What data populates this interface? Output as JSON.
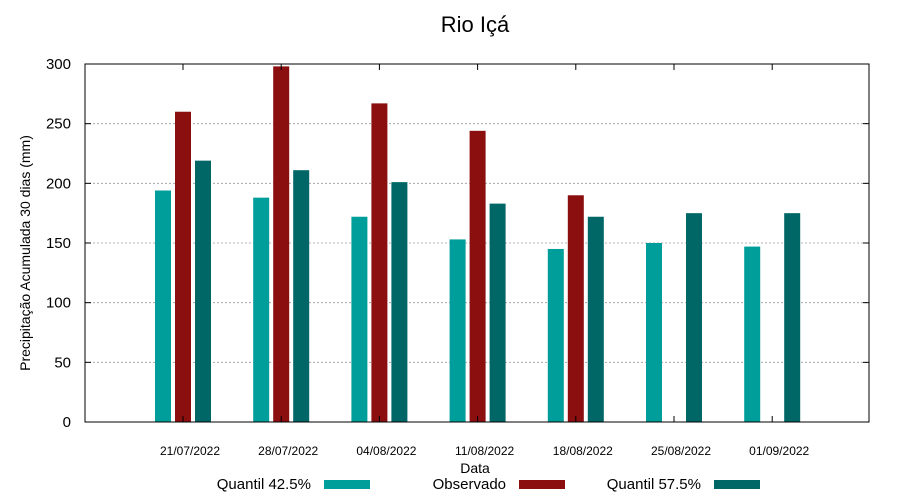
{
  "chart_data": {
    "type": "bar",
    "title": "Rio Içá",
    "xlabel": "Data",
    "ylabel": "Precipitação Acumulada 30 dias (mm)",
    "ylim": [
      0,
      300
    ],
    "yticks": [
      0,
      50,
      100,
      150,
      200,
      250,
      300
    ],
    "grid": true,
    "legend_position": "bottom",
    "categories": [
      "21/07/2022",
      "28/07/2022",
      "04/08/2022",
      "11/08/2022",
      "18/08/2022",
      "25/08/2022",
      "01/09/2022"
    ],
    "series": [
      {
        "name": "Quantil 42.5%",
        "color": "#009e9a",
        "values": [
          194,
          188,
          172,
          153,
          145,
          150,
          147
        ]
      },
      {
        "name": "Observado",
        "color": "#8b0f0f",
        "values": [
          260,
          298,
          267,
          244,
          190,
          null,
          null
        ]
      },
      {
        "name": "Quantil 57.5%",
        "color": "#006666",
        "values": [
          219,
          211,
          201,
          183,
          172,
          175,
          175
        ]
      }
    ]
  }
}
